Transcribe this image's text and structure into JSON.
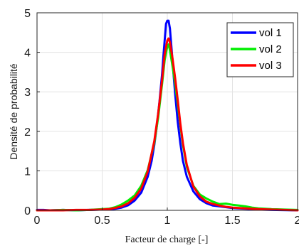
{
  "chart_data": {
    "type": "line",
    "title": "",
    "xlabel": "Facteur de charge [-]",
    "ylabel": "Densité de probabilité",
    "xlim": [
      0,
      2
    ],
    "ylim": [
      0,
      5
    ],
    "x_ticks": [
      0,
      0.5,
      1,
      1.5,
      2
    ],
    "x_tick_labels": [
      "0",
      "0.5",
      "1",
      "1.5",
      "2"
    ],
    "y_ticks": [
      0,
      1,
      2,
      3,
      4,
      5
    ],
    "y_tick_labels": [
      "0",
      "1",
      "2",
      "3",
      "4",
      "5"
    ],
    "grid": true,
    "legend_position": "top-right",
    "series": [
      {
        "name": "vol 1",
        "color": "#0000ff",
        "x": [
          0.0,
          0.05,
          0.1,
          0.2,
          0.3,
          0.4,
          0.5,
          0.55,
          0.6,
          0.65,
          0.7,
          0.75,
          0.8,
          0.85,
          0.88,
          0.9,
          0.92,
          0.94,
          0.96,
          0.97,
          0.98,
          0.99,
          1.0,
          1.01,
          1.02,
          1.03,
          1.04,
          1.05,
          1.06,
          1.08,
          1.1,
          1.12,
          1.15,
          1.2,
          1.25,
          1.3,
          1.35,
          1.4,
          1.5,
          1.6,
          1.7,
          1.8,
          2.0
        ],
        "y": [
          0.01,
          0.01,
          0.0,
          0.01,
          0.0,
          0.01,
          0.02,
          0.02,
          0.04,
          0.07,
          0.13,
          0.25,
          0.45,
          0.85,
          1.25,
          1.65,
          2.15,
          2.75,
          3.45,
          3.9,
          4.3,
          4.72,
          4.8,
          4.8,
          4.6,
          4.2,
          3.8,
          3.35,
          2.95,
          2.25,
          1.7,
          1.25,
          0.85,
          0.48,
          0.28,
          0.18,
          0.12,
          0.1,
          0.06,
          0.04,
          0.02,
          0.01,
          0.0
        ]
      },
      {
        "name": "vol 2",
        "color": "#00ee00",
        "x": [
          0.0,
          0.1,
          0.2,
          0.3,
          0.4,
          0.5,
          0.55,
          0.6,
          0.65,
          0.7,
          0.75,
          0.8,
          0.85,
          0.9,
          0.93,
          0.96,
          0.98,
          1.0,
          1.01,
          1.02,
          1.04,
          1.06,
          1.08,
          1.1,
          1.12,
          1.15,
          1.2,
          1.25,
          1.3,
          1.35,
          1.4,
          1.45,
          1.5,
          1.55,
          1.6,
          1.65,
          1.7,
          1.8,
          1.9,
          2.0
        ],
        "y": [
          0.0,
          0.0,
          0.01,
          0.0,
          0.01,
          0.03,
          0.04,
          0.08,
          0.15,
          0.25,
          0.38,
          0.62,
          1.02,
          1.7,
          2.35,
          3.2,
          3.8,
          4.15,
          4.2,
          4.05,
          3.65,
          3.2,
          2.7,
          2.15,
          1.65,
          1.1,
          0.62,
          0.4,
          0.3,
          0.22,
          0.16,
          0.17,
          0.14,
          0.12,
          0.1,
          0.07,
          0.05,
          0.03,
          0.02,
          0.01
        ]
      },
      {
        "name": "vol 3",
        "color": "#ff0000",
        "x": [
          0.0,
          0.1,
          0.2,
          0.3,
          0.4,
          0.5,
          0.55,
          0.6,
          0.65,
          0.7,
          0.75,
          0.8,
          0.85,
          0.9,
          0.93,
          0.96,
          0.98,
          1.0,
          1.01,
          1.02,
          1.04,
          1.06,
          1.08,
          1.1,
          1.12,
          1.15,
          1.2,
          1.25,
          1.3,
          1.35,
          1.4,
          1.45,
          1.5,
          1.6,
          1.7,
          1.8,
          1.9,
          2.0
        ],
        "y": [
          0.0,
          0.0,
          0.0,
          0.01,
          0.01,
          0.02,
          0.03,
          0.06,
          0.1,
          0.18,
          0.32,
          0.55,
          0.98,
          1.75,
          2.45,
          3.3,
          3.95,
          4.3,
          4.35,
          4.25,
          3.85,
          3.35,
          2.8,
          2.2,
          1.7,
          1.15,
          0.6,
          0.35,
          0.22,
          0.16,
          0.12,
          0.09,
          0.07,
          0.05,
          0.03,
          0.02,
          0.01,
          0.0
        ]
      }
    ]
  }
}
